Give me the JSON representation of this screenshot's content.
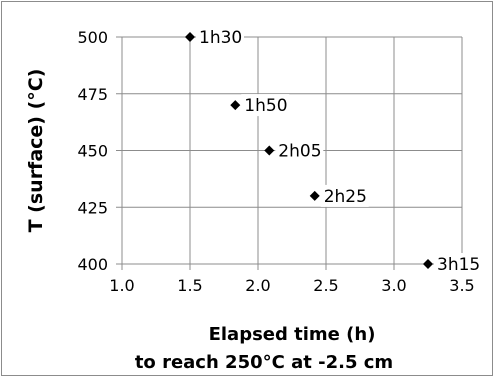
{
  "chart_data": {
    "type": "scatter",
    "xlabel": "Elapsed time (h)",
    "xlabel_line2": "to reach 250°C at -2.5 cm",
    "ylabel": "T (surface) (°C)",
    "xlim": [
      1.0,
      3.5
    ],
    "ylim": [
      400,
      500
    ],
    "x_ticks": [
      1.0,
      1.5,
      2.0,
      2.5,
      3.0,
      3.5
    ],
    "x_tick_labels": [
      "1.0",
      "1.5",
      "2.0",
      "2.5",
      "3.0",
      "3.5"
    ],
    "y_ticks": [
      400,
      425,
      450,
      475,
      500
    ],
    "y_tick_labels": [
      "400",
      "425",
      "450",
      "475",
      "500"
    ],
    "grid": true,
    "legend": false,
    "marker": "diamond",
    "marker_color": "#000000",
    "grid_color": "#8c8c8c",
    "points": [
      {
        "x": 1.5,
        "y": 500,
        "label": "1h30"
      },
      {
        "x": 1.833,
        "y": 470,
        "label": "1h50"
      },
      {
        "x": 2.083,
        "y": 450,
        "label": "2h05"
      },
      {
        "x": 2.417,
        "y": 430,
        "label": "2h25"
      },
      {
        "x": 3.25,
        "y": 400,
        "label": "3h15"
      }
    ]
  }
}
